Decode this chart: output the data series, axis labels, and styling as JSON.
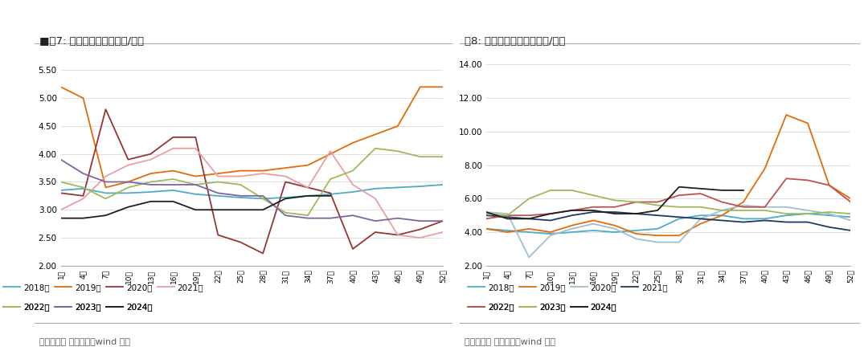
{
  "fig7_title": "■图7: 主产区鸡苗价格（元/羽）",
  "fig8_title": "图8: 主产区淘汰鸡价格（元/斤）",
  "source_text": "数据来源： 銀河期货，wind 资讯",
  "xtick_labels": [
    "1周",
    "4周",
    "7周",
    "10周",
    "13周",
    "16周",
    "19周",
    "22周",
    "25周",
    "28周",
    "31周",
    "34周",
    "37周",
    "40周",
    "43周",
    "46周",
    "49周",
    "52周"
  ],
  "xtick_positions": [
    1,
    4,
    7,
    10,
    13,
    16,
    19,
    22,
    25,
    28,
    31,
    34,
    37,
    40,
    43,
    46,
    49,
    52
  ],
  "fig7_ylim": [
    2.0,
    5.6
  ],
  "fig7_yticks": [
    2.0,
    2.5,
    3.0,
    3.5,
    4.0,
    4.5,
    5.0,
    5.5
  ],
  "fig8_ylim": [
    2.0,
    14.0
  ],
  "fig8_yticks": [
    2.0,
    4.0,
    6.0,
    8.0,
    10.0,
    12.0,
    14.0
  ],
  "fig7_series": {
    "2018年": {
      "color": "#4BACC6",
      "data_x": [
        1,
        4,
        7,
        10,
        13,
        16,
        19,
        22,
        25,
        28,
        31,
        34,
        37,
        40,
        43,
        46,
        49,
        52
      ],
      "data_y": [
        3.35,
        3.38,
        3.3,
        3.3,
        3.32,
        3.35,
        3.28,
        3.25,
        3.22,
        3.2,
        3.22,
        3.25,
        3.28,
        3.32,
        3.38,
        3.4,
        3.42,
        3.45
      ]
    },
    "2019年": {
      "color": "#E36C09",
      "data_x": [
        1,
        4,
        7,
        10,
        13,
        16,
        19,
        22,
        25,
        28,
        31,
        34,
        37,
        40,
        43,
        46,
        49,
        52
      ],
      "data_y": [
        5.2,
        5.0,
        3.4,
        3.5,
        3.65,
        3.7,
        3.6,
        3.65,
        3.7,
        3.7,
        3.75,
        3.8,
        4.0,
        4.2,
        4.35,
        4.5,
        5.2,
        5.2
      ]
    },
    "2020年": {
      "color": "#943634",
      "data_x": [
        1,
        4,
        7,
        10,
        13,
        16,
        19,
        22,
        25,
        28,
        31,
        34,
        37,
        40,
        43,
        46,
        49,
        52
      ],
      "data_y": [
        3.3,
        3.25,
        4.8,
        3.9,
        4.0,
        4.3,
        4.3,
        2.55,
        2.42,
        2.22,
        3.5,
        3.4,
        3.3,
        2.3,
        2.6,
        2.55,
        2.65,
        2.8
      ]
    },
    "2021年": {
      "color": "#E6A0A0",
      "data_x": [
        1,
        4,
        7,
        10,
        13,
        16,
        19,
        22,
        25,
        28,
        31,
        34,
        37,
        40,
        43,
        46,
        49,
        52
      ],
      "data_y": [
        3.0,
        3.2,
        3.6,
        3.8,
        3.9,
        4.1,
        4.1,
        3.6,
        3.6,
        3.65,
        3.6,
        3.4,
        4.05,
        3.45,
        3.2,
        2.55,
        2.5,
        2.6
      ]
    },
    "2022年": {
      "color": "#9BBB59",
      "data_x": [
        1,
        4,
        7,
        10,
        13,
        16,
        19,
        22,
        25,
        28,
        31,
        34,
        37,
        40,
        43,
        46,
        49,
        52
      ],
      "data_y": [
        3.5,
        3.4,
        3.2,
        3.4,
        3.5,
        3.55,
        3.45,
        3.5,
        3.45,
        3.2,
        2.95,
        2.9,
        3.55,
        3.7,
        4.1,
        4.05,
        3.95,
        3.95
      ]
    },
    "2023年": {
      "color": "#8064A2",
      "data_x": [
        1,
        4,
        7,
        10,
        13,
        16,
        19,
        22,
        25,
        28,
        31,
        34,
        37,
        40,
        43,
        46,
        49,
        52
      ],
      "data_y": [
        3.9,
        3.65,
        3.5,
        3.5,
        3.45,
        3.45,
        3.45,
        3.3,
        3.25,
        3.25,
        2.9,
        2.85,
        2.85,
        2.9,
        2.8,
        2.85,
        2.8,
        2.8
      ]
    },
    "2024年": {
      "color": "#1F1F1F",
      "data_x": [
        1,
        4,
        7,
        10,
        13,
        16,
        19,
        22,
        25,
        28,
        31,
        34,
        37,
        40,
        43,
        46,
        49,
        52
      ],
      "data_y": [
        2.85,
        2.85,
        2.9,
        3.05,
        3.15,
        3.15,
        3.0,
        3.0,
        3.0,
        3.0,
        3.2,
        3.25,
        3.25,
        null,
        null,
        null,
        null,
        null
      ]
    }
  },
  "fig8_series": {
    "2018年": {
      "color": "#4BACC6",
      "data_x": [
        1,
        4,
        7,
        10,
        13,
        16,
        19,
        22,
        25,
        28,
        31,
        34,
        37,
        40,
        43,
        46,
        49,
        52
      ],
      "data_y": [
        4.2,
        4.1,
        4.0,
        3.9,
        4.0,
        4.1,
        4.0,
        4.1,
        4.2,
        4.8,
        5.0,
        5.0,
        4.8,
        4.8,
        5.0,
        5.1,
        5.0,
        4.9
      ]
    },
    "2019年": {
      "color": "#E36C09",
      "data_x": [
        1,
        4,
        7,
        10,
        13,
        16,
        19,
        22,
        25,
        28,
        31,
        34,
        37,
        40,
        43,
        46,
        49,
        52
      ],
      "data_y": [
        4.2,
        4.0,
        4.2,
        4.0,
        4.4,
        4.7,
        4.4,
        3.9,
        3.8,
        3.8,
        4.5,
        5.0,
        5.8,
        7.8,
        11.0,
        10.5,
        6.8,
        6.0
      ]
    },
    "2020年": {
      "color": "#A0BECE",
      "data_x": [
        1,
        4,
        7,
        10,
        13,
        16,
        19,
        22,
        25,
        28,
        31,
        34,
        37,
        40,
        43,
        46,
        49,
        52
      ],
      "data_y": [
        5.2,
        5.1,
        2.5,
        3.8,
        4.2,
        4.5,
        4.2,
        3.6,
        3.4,
        3.4,
        4.8,
        5.3,
        5.6,
        5.5,
        5.5,
        5.3,
        5.1,
        4.7
      ]
    },
    "2021年": {
      "color": "#1F3864",
      "data_x": [
        1,
        4,
        7,
        10,
        13,
        16,
        19,
        22,
        25,
        28,
        31,
        34,
        37,
        40,
        43,
        46,
        49,
        52
      ],
      "data_y": [
        5.0,
        4.9,
        4.8,
        4.7,
        5.0,
        5.2,
        5.2,
        5.1,
        5.0,
        4.9,
        4.8,
        4.7,
        4.6,
        4.7,
        4.6,
        4.6,
        4.3,
        4.1
      ]
    },
    "2022年": {
      "color": "#C0504D",
      "data_x": [
        1,
        4,
        7,
        10,
        13,
        16,
        19,
        22,
        25,
        28,
        31,
        34,
        37,
        40,
        43,
        46,
        49,
        52
      ],
      "data_y": [
        4.8,
        5.0,
        5.0,
        5.1,
        5.3,
        5.5,
        5.5,
        5.8,
        5.8,
        6.2,
        6.3,
        5.8,
        5.5,
        5.5,
        7.2,
        7.1,
        6.8,
        5.8
      ]
    },
    "2023年": {
      "color": "#9BBB59",
      "data_x": [
        1,
        4,
        7,
        10,
        13,
        16,
        19,
        22,
        25,
        28,
        31,
        34,
        37,
        40,
        43,
        46,
        49,
        52
      ],
      "data_y": [
        5.1,
        5.0,
        6.0,
        6.5,
        6.5,
        6.2,
        5.9,
        5.8,
        5.6,
        5.5,
        5.5,
        5.3,
        5.3,
        5.3,
        5.1,
        5.1,
        5.2,
        5.1
      ]
    },
    "2024年": {
      "color": "#1F1F1F",
      "data_x": [
        1,
        4,
        7,
        10,
        13,
        16,
        19,
        22,
        25,
        28,
        31,
        34,
        37,
        40,
        43,
        46,
        49,
        52
      ],
      "data_y": [
        5.2,
        4.8,
        4.8,
        5.1,
        5.3,
        5.3,
        5.1,
        5.1,
        5.3,
        6.7,
        6.6,
        6.5,
        6.5,
        null,
        null,
        null,
        null,
        null
      ]
    }
  },
  "legend_order": [
    "2018年",
    "2019年",
    "2020年",
    "2021年",
    "2022年",
    "2023年",
    "2024年"
  ],
  "background_color": "#FFFFFF"
}
